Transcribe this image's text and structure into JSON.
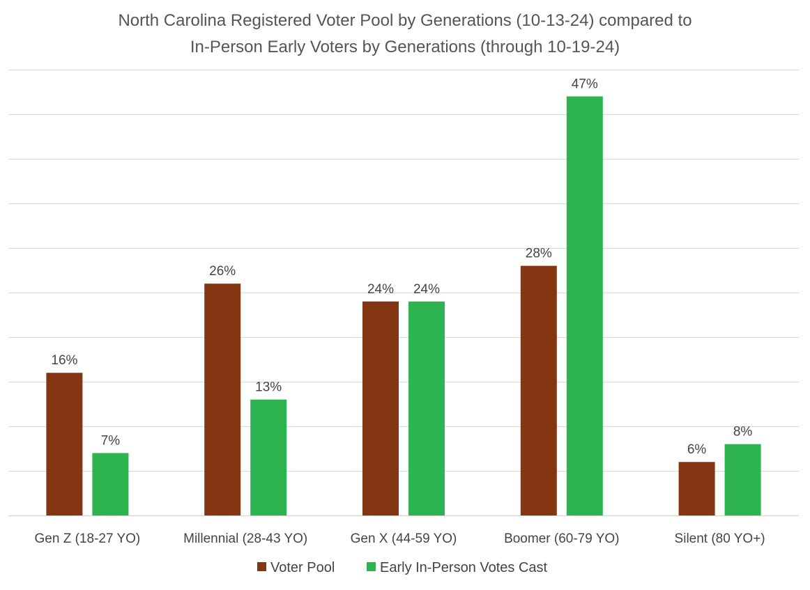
{
  "chart_data": {
    "type": "bar",
    "title": [
      "North Carolina Registered Voter Pool by Generations (10-13-24) compared to",
      "In-Person Early Voters by Generations (through 10-19-24)"
    ],
    "xlabel": "",
    "ylabel": "",
    "ylim": [
      0,
      50
    ],
    "grid_step": 5,
    "grid": true,
    "legend_position": "bottom",
    "categories": [
      "Gen Z (18-27 YO)",
      "Millennial (28-43 YO)",
      "Gen X (44-59 YO)",
      "Boomer (60-79 YO)",
      "Silent (80 YO+)"
    ],
    "series": [
      {
        "name": "Voter Pool",
        "color": "#843511",
        "values": [
          16,
          26,
          24,
          28,
          6
        ],
        "labels": [
          "16%",
          "26%",
          "24%",
          "28%",
          "6%"
        ]
      },
      {
        "name": "Early In-Person Votes Cast",
        "color": "#2db350",
        "values": [
          7,
          13,
          24,
          47,
          8
        ],
        "labels": [
          "7%",
          "13%",
          "24%",
          "47%",
          "8%"
        ]
      }
    ]
  }
}
